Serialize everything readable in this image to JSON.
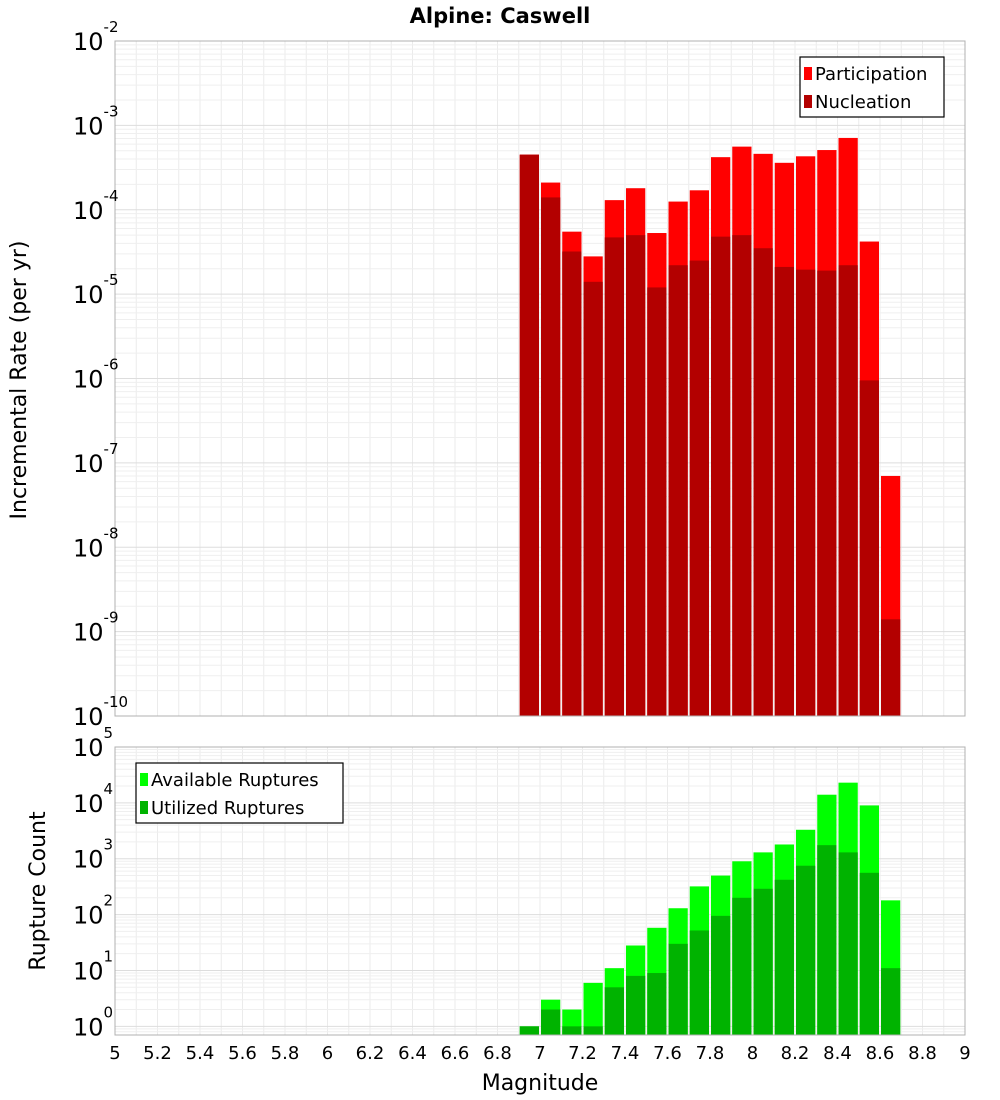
{
  "chart_data": [
    {
      "type": "bar",
      "title": "Alpine: Caswell",
      "ylabel": "Incremental Rate (per yr)",
      "xlabel": "",
      "yscale": "log",
      "ylim": [
        1e-10,
        0.01
      ],
      "xlim": [
        5,
        9
      ],
      "y_ticks": [
        {
          "base": "10",
          "exp": "-10",
          "value": 1e-10
        },
        {
          "base": "10",
          "exp": "-9",
          "value": 1e-09
        },
        {
          "base": "10",
          "exp": "-8",
          "value": 1e-08
        },
        {
          "base": "10",
          "exp": "-7",
          "value": 1e-07
        },
        {
          "base": "10",
          "exp": "-6",
          "value": 1e-06
        },
        {
          "base": "10",
          "exp": "-5",
          "value": 1e-05
        },
        {
          "base": "10",
          "exp": "-4",
          "value": 0.0001
        },
        {
          "base": "10",
          "exp": "-3",
          "value": 0.001
        },
        {
          "base": "10",
          "exp": "-2",
          "value": 0.01
        }
      ],
      "legend": {
        "position": "top-right"
      },
      "x": [
        6.95,
        7.05,
        7.15,
        7.25,
        7.35,
        7.45,
        7.55,
        7.65,
        7.75,
        7.85,
        7.95,
        8.05,
        8.15,
        8.25,
        8.35,
        8.45,
        8.55,
        8.65
      ],
      "series": [
        {
          "name": "Participation",
          "color": "#ff0000",
          "values": [
            0.00045,
            0.00021,
            5.5e-05,
            2.8e-05,
            0.00013,
            0.00018,
            5.3e-05,
            0.000125,
            0.00017,
            0.00042,
            0.00056,
            0.00046,
            0.00036,
            0.00043,
            0.00051,
            0.00071,
            4.2e-05,
            7e-08
          ]
        },
        {
          "name": "Nucleation",
          "color": "#b30000",
          "values": [
            0.00045,
            0.00014,
            3.2e-05,
            1.4e-05,
            4.7e-05,
            5e-05,
            1.2e-05,
            2.2e-05,
            2.5e-05,
            4.8e-05,
            5e-05,
            3.5e-05,
            2.1e-05,
            1.95e-05,
            1.9e-05,
            2.2e-05,
            9.5e-07,
            1.4e-09
          ]
        }
      ]
    },
    {
      "type": "bar",
      "title": "",
      "ylabel": "Rupture Count",
      "xlabel": "Magnitude",
      "yscale": "log",
      "ylim": [
        0.7,
        100000
      ],
      "xlim": [
        5,
        9
      ],
      "y_ticks": [
        {
          "base": "10",
          "exp": "0",
          "value": 1
        },
        {
          "base": "10",
          "exp": "1",
          "value": 10
        },
        {
          "base": "10",
          "exp": "2",
          "value": 100
        },
        {
          "base": "10",
          "exp": "3",
          "value": 1000
        },
        {
          "base": "10",
          "exp": "4",
          "value": 10000
        },
        {
          "base": "10",
          "exp": "5",
          "value": 100000
        }
      ],
      "x_ticks": [
        "5",
        "5.2",
        "5.4",
        "5.6",
        "5.8",
        "6",
        "6.2",
        "6.4",
        "6.6",
        "6.8",
        "7",
        "7.2",
        "7.4",
        "7.6",
        "7.8",
        "8",
        "8.2",
        "8.4",
        "8.6",
        "8.8",
        "9"
      ],
      "legend": {
        "position": "top-left"
      },
      "x": [
        6.95,
        7.05,
        7.15,
        7.25,
        7.35,
        7.45,
        7.55,
        7.65,
        7.75,
        7.85,
        7.95,
        8.05,
        8.15,
        8.25,
        8.35,
        8.45,
        8.55,
        8.65
      ],
      "series": [
        {
          "name": "Available Ruptures",
          "color": "#00ff00",
          "values": [
            1,
            3,
            2,
            6,
            11,
            28,
            58,
            130,
            320,
            500,
            900,
            1300,
            1800,
            3300,
            14000,
            23000,
            9000,
            180
          ]
        },
        {
          "name": "Utilized Ruptures",
          "color": "#00b300",
          "values": [
            1,
            2,
            1,
            1,
            5,
            8,
            9,
            30,
            52,
            95,
            200,
            290,
            420,
            750,
            1750,
            1300,
            560,
            11
          ]
        }
      ]
    }
  ]
}
